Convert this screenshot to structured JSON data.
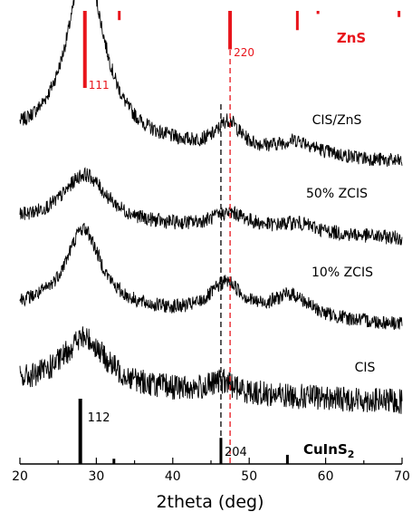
{
  "chart_data": {
    "type": "line",
    "xlabel": "2theta (deg)",
    "xlim": [
      20,
      70
    ],
    "x_ticks": [
      "20",
      "30",
      "40",
      "50",
      "60",
      "70"
    ],
    "y_axis_visible": false,
    "grid": false,
    "series": [
      {
        "name": "CIS/ZnS",
        "color": "#000000",
        "offset": 165,
        "peaks": [
          [
            28.6,
            195,
            3.0
          ],
          [
            47.3,
            30,
            1.8
          ],
          [
            56.3,
            15,
            3.0
          ]
        ],
        "background": 40,
        "noise": 8
      },
      {
        "name": "50% ZCIS",
        "color": "#000000",
        "offset": 245,
        "peaks": [
          [
            28.5,
            55,
            3.5
          ],
          [
            47.5,
            18,
            3.0
          ],
          [
            56.3,
            10,
            3.0
          ]
        ],
        "background": 30,
        "noise": 8
      },
      {
        "name": "10% ZCIS",
        "color": "#000000",
        "offset": 340,
        "peaks": [
          [
            28.3,
            90,
            2.8
          ],
          [
            47.0,
            35,
            2.5
          ],
          [
            55.5,
            25,
            3.0
          ]
        ],
        "background": 30,
        "noise": 8
      },
      {
        "name": "CIS",
        "color": "#000000",
        "offset": 425,
        "peaks": [
          [
            28.4,
            55,
            3.5
          ],
          [
            46.5,
            12,
            2.0
          ]
        ],
        "background": 30,
        "noise": 14
      }
    ],
    "reference_patterns": [
      {
        "name": "ZnS",
        "color": "#e8141b",
        "position": "top",
        "sticks": [
          [
            28.5,
            100
          ],
          [
            33.0,
            12
          ],
          [
            47.5,
            50
          ],
          [
            56.3,
            25
          ],
          [
            59.0,
            4
          ],
          [
            69.6,
            8
          ]
        ],
        "labels": [
          {
            "x": 28.5,
            "text": "111"
          },
          {
            "x": 47.5,
            "text": "220"
          }
        ],
        "dashed_line_x": 47.5
      },
      {
        "name": "CuInS",
        "subscript": "2",
        "color": "#000000",
        "position": "bottom",
        "sticks": [
          [
            27.9,
            100
          ],
          [
            32.3,
            8
          ],
          [
            46.3,
            40
          ],
          [
            55.0,
            14
          ]
        ],
        "labels": [
          {
            "x": 27.9,
            "text": "112"
          },
          {
            "x": 46.3,
            "text": "204"
          }
        ],
        "dashed_line_x": 46.3
      }
    ]
  }
}
